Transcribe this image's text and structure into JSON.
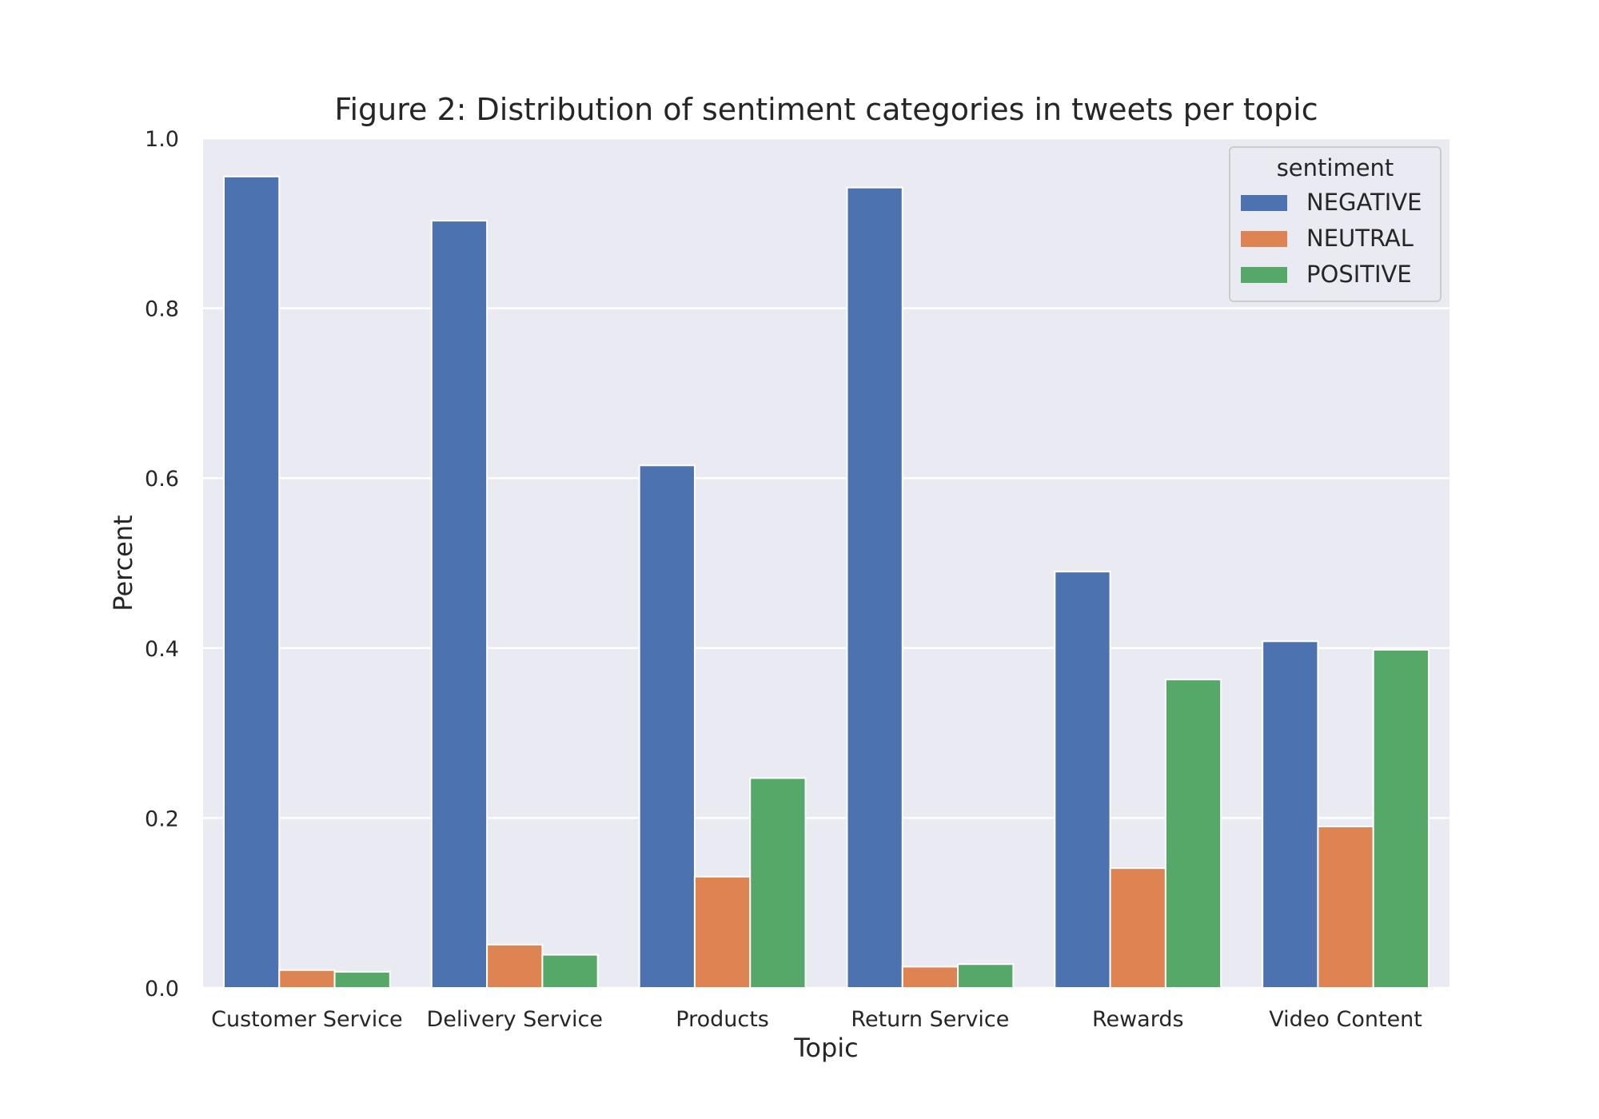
{
  "chart_data": {
    "type": "bar",
    "title": "Figure 2: Distribution of sentiment categories in tweets per topic",
    "xlabel": "Topic",
    "ylabel": "Percent",
    "ylim": [
      0,
      1.0
    ],
    "yticks": [
      "0.0",
      "0.2",
      "0.4",
      "0.6",
      "0.8",
      "1.0"
    ],
    "grid": true,
    "categories": [
      "Customer Service",
      "Delivery Service",
      "Products",
      "Return Service",
      "Rewards",
      "Video Content"
    ],
    "series": [
      {
        "name": "NEGATIVE",
        "color": "#4c72b0",
        "values": [
          0.955,
          0.903,
          0.615,
          0.942,
          0.49,
          0.408
        ]
      },
      {
        "name": "NEUTRAL",
        "color": "#dd8452",
        "values": [
          0.021,
          0.051,
          0.131,
          0.025,
          0.141,
          0.19
        ]
      },
      {
        "name": "POSITIVE",
        "color": "#55a868",
        "values": [
          0.019,
          0.039,
          0.247,
          0.028,
          0.363,
          0.398
        ]
      }
    ],
    "legend": {
      "title": "sentiment",
      "placement": "top-right"
    },
    "colors": {
      "plot_background": "#eaeaf2",
      "grid": "#ffffff"
    }
  }
}
